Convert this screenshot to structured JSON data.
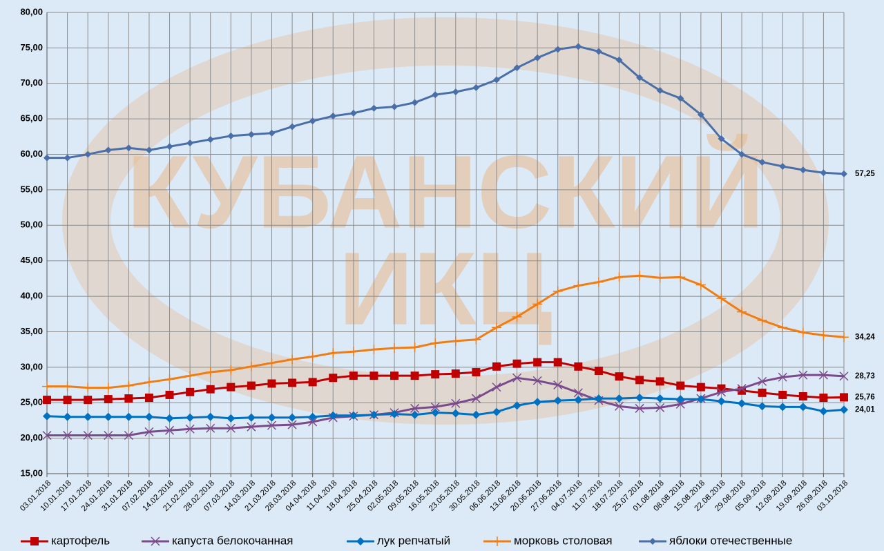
{
  "chart_data": {
    "type": "line",
    "watermark": [
      "КУБАНСКИЙ",
      "ИКЦ"
    ],
    "categories": [
      "03.01.2018",
      "10.01.2018",
      "17.01.2018",
      "24.01.2018",
      "31.01.2018",
      "07.02.2018",
      "14.02.2018",
      "21.02.2018",
      "28.02.2018",
      "07.03.2018",
      "14.03.2018",
      "21.03.2018",
      "28.03.2018",
      "04.04.2018",
      "11.04.2018",
      "18.04.2018",
      "25.04.2018",
      "02.05.2018",
      "09.05.2018",
      "16.05.2018",
      "23.05.2018",
      "30.05.2018",
      "06.06.2018",
      "13.06.2018",
      "20.06.2018",
      "27.06.2018",
      "04.07.2018",
      "11.07.2018",
      "18.07.2018",
      "25.07.2018",
      "01.08.2018",
      "08.08.2018",
      "15.08.2018",
      "22.08.2018",
      "29.08.2018",
      "05.09.2018",
      "12.09.2018",
      "19.09.2018",
      "26.09.2018",
      "03.10.2018"
    ],
    "ylim": [
      15,
      80
    ],
    "yticks": [
      {
        "value": 15,
        "label": "15,00"
      },
      {
        "value": 20,
        "label": "20,00"
      },
      {
        "value": 25,
        "label": "25,00"
      },
      {
        "value": 30,
        "label": "30,00"
      },
      {
        "value": 35,
        "label": "35,00"
      },
      {
        "value": 40,
        "label": "40,00"
      },
      {
        "value": 45,
        "label": "45,00"
      },
      {
        "value": 50,
        "label": "50,00"
      },
      {
        "value": 55,
        "label": "55,00"
      },
      {
        "value": 60,
        "label": "60,00"
      },
      {
        "value": 65,
        "label": "65,00"
      },
      {
        "value": 70,
        "label": "70,00"
      },
      {
        "value": 75,
        "label": "75,00"
      },
      {
        "value": 80,
        "label": "80,00"
      }
    ],
    "grid": true,
    "series": [
      {
        "name": "картофель",
        "color": "#c00000",
        "marker": "square",
        "values": [
          25.4,
          25.4,
          25.4,
          25.5,
          25.6,
          25.7,
          26.1,
          26.5,
          26.9,
          27.2,
          27.4,
          27.7,
          27.8,
          27.9,
          28.5,
          28.8,
          28.8,
          28.8,
          28.8,
          29.0,
          29.1,
          29.3,
          30.1,
          30.5,
          30.7,
          30.7,
          30.1,
          29.5,
          28.7,
          28.2,
          28.0,
          27.4,
          27.2,
          27.0,
          26.7,
          26.4,
          26.1,
          25.9,
          25.7,
          25.76
        ],
        "value_labels": [
          null,
          null,
          null,
          null,
          null,
          null,
          null,
          null,
          null,
          null,
          null,
          null,
          null,
          null,
          null,
          null,
          null,
          null,
          null,
          null,
          null,
          null,
          null,
          null,
          null,
          null,
          null,
          null,
          null,
          null,
          null,
          null,
          null,
          null,
          null,
          null,
          null,
          null,
          null,
          "25,76"
        ]
      },
      {
        "name": "капуста белокочанная",
        "color": "#7b4a8c",
        "marker": "x",
        "values": [
          20.4,
          20.4,
          20.4,
          20.4,
          20.4,
          20.9,
          21.1,
          21.3,
          21.4,
          21.4,
          21.6,
          21.8,
          21.9,
          22.3,
          22.9,
          23.1,
          23.3,
          23.6,
          24.2,
          24.4,
          24.9,
          25.6,
          27.2,
          28.5,
          28.1,
          27.5,
          26.4,
          25.3,
          24.5,
          24.2,
          24.3,
          24.8,
          25.6,
          26.5,
          27.0,
          28.0,
          28.6,
          28.9,
          28.9,
          28.73
        ],
        "value_labels": [
          null,
          null,
          null,
          null,
          null,
          null,
          null,
          null,
          null,
          null,
          null,
          null,
          null,
          null,
          null,
          null,
          null,
          null,
          null,
          null,
          null,
          null,
          null,
          null,
          null,
          null,
          null,
          null,
          null,
          null,
          null,
          null,
          null,
          null,
          null,
          null,
          null,
          null,
          null,
          "28,73"
        ]
      },
      {
        "name": "лук репчатый",
        "color": "#0070c0",
        "marker": "diamond",
        "values": [
          23.1,
          23.0,
          23.0,
          23.0,
          23.0,
          23.0,
          22.8,
          22.9,
          23.0,
          22.8,
          22.9,
          22.9,
          22.9,
          23.0,
          23.2,
          23.2,
          23.3,
          23.4,
          23.3,
          23.6,
          23.5,
          23.3,
          23.7,
          24.6,
          25.1,
          25.3,
          25.4,
          25.6,
          25.6,
          25.7,
          25.6,
          25.5,
          25.5,
          25.2,
          24.9,
          24.5,
          24.4,
          24.4,
          23.8,
          24.01
        ],
        "value_labels": [
          null,
          null,
          null,
          null,
          null,
          null,
          null,
          null,
          null,
          null,
          null,
          null,
          null,
          null,
          null,
          null,
          null,
          null,
          null,
          null,
          null,
          null,
          null,
          null,
          null,
          null,
          null,
          null,
          null,
          null,
          null,
          null,
          null,
          null,
          null,
          null,
          null,
          null,
          null,
          "24,01"
        ]
      },
      {
        "name": "морковь столовая",
        "color": "#f07d14",
        "marker": "plus",
        "values": [
          27.3,
          27.3,
          27.1,
          27.1,
          27.4,
          27.9,
          28.3,
          28.8,
          29.3,
          29.6,
          30.1,
          30.6,
          31.1,
          31.5,
          32.0,
          32.2,
          32.5,
          32.7,
          32.8,
          33.4,
          33.7,
          33.9,
          35.6,
          37.1,
          38.9,
          40.7,
          41.5,
          42.0,
          42.7,
          42.9,
          42.6,
          42.7,
          41.6,
          39.7,
          37.8,
          36.6,
          35.6,
          34.9,
          34.5,
          34.24
        ],
        "value_labels": [
          null,
          null,
          null,
          null,
          null,
          null,
          null,
          null,
          null,
          null,
          null,
          null,
          null,
          null,
          null,
          null,
          null,
          null,
          null,
          null,
          null,
          null,
          null,
          null,
          null,
          null,
          null,
          null,
          null,
          null,
          null,
          null,
          null,
          null,
          null,
          null,
          null,
          null,
          null,
          "34,24"
        ]
      },
      {
        "name": "яблоки отечественные",
        "color": "#4a6fa8",
        "marker": "smalldiamond",
        "values": [
          59.5,
          59.5,
          60.0,
          60.6,
          60.9,
          60.6,
          61.1,
          61.6,
          62.1,
          62.6,
          62.8,
          63.0,
          63.9,
          64.7,
          65.4,
          65.8,
          66.5,
          66.7,
          67.3,
          68.4,
          68.8,
          69.4,
          70.5,
          72.2,
          73.6,
          74.8,
          75.2,
          74.5,
          73.3,
          70.8,
          69.0,
          67.9,
          65.6,
          62.2,
          60.0,
          58.9,
          58.3,
          57.8,
          57.4,
          57.25
        ],
        "value_labels": [
          null,
          null,
          null,
          null,
          null,
          null,
          null,
          null,
          null,
          null,
          null,
          null,
          null,
          null,
          null,
          null,
          null,
          null,
          null,
          null,
          null,
          null,
          null,
          null,
          null,
          null,
          null,
          null,
          null,
          null,
          null,
          null,
          null,
          null,
          null,
          null,
          null,
          null,
          null,
          "57,25"
        ]
      }
    ]
  }
}
